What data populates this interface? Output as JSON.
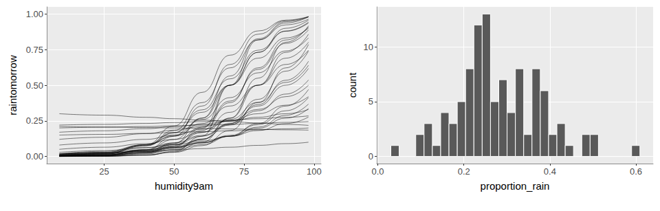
{
  "chart_data": [
    {
      "type": "line",
      "x_label": "humidity9am",
      "y_label": "raintomorrow",
      "color": "#000000",
      "grid": true,
      "xlim": [
        4.5,
        102.5
      ],
      "xticks": [
        25,
        50,
        75,
        100
      ],
      "ylim": [
        -0.05,
        1.05
      ],
      "yticks": [
        {
          "value": 0,
          "label": "0.00"
        },
        {
          "value": 0.25,
          "label": "0.25"
        },
        {
          "value": 0.5,
          "label": "0.50"
        },
        {
          "value": 0.75,
          "label": "0.75"
        },
        {
          "value": 1,
          "label": "1.00"
        }
      ],
      "x": [
        9,
        25,
        40,
        50,
        60,
        70,
        80,
        90,
        98
      ],
      "series": [
        {
          "values": [
            0.002,
            0.007,
            0.029,
            0.076,
            0.182,
            0.378,
            0.622,
            0.818,
            0.909
          ]
        },
        {
          "values": [
            0.003,
            0.011,
            0.047,
            0.119,
            0.269,
            0.5,
            0.731,
            0.881,
            0.943
          ]
        },
        {
          "values": [
            0.005,
            0.018,
            0.076,
            0.182,
            0.378,
            0.622,
            0.818,
            0.924,
            0.964
          ]
        },
        {
          "values": [
            0.001,
            0.004,
            0.018,
            0.047,
            0.119,
            0.269,
            0.5,
            0.731,
            0.858
          ]
        },
        {
          "values": [
            0.001,
            0.004,
            0.022,
            0.069,
            0.198,
            0.5,
            0.731,
            0.9,
            0.957
          ]
        },
        {
          "values": [
            0,
            0.002,
            0.01,
            0.032,
            0.1,
            0.269,
            0.55,
            0.802,
            0.917
          ]
        },
        {
          "values": [
            0.01,
            0.027,
            0.083,
            0.168,
            0.31,
            0.5,
            0.69,
            0.832,
            0.9
          ]
        },
        {
          "values": [
            0.005,
            0.012,
            0.039,
            0.083,
            0.168,
            0.31,
            0.5,
            0.69,
            0.802
          ]
        },
        {
          "values": [
            0.003,
            0.008,
            0.027,
            0.057,
            0.119,
            0.231,
            0.401,
            0.599,
            0.739
          ]
        },
        {
          "values": [
            0.01,
            0.02,
            0.047,
            0.083,
            0.142,
            0.231,
            0.354,
            0.5,
            0.618
          ]
        },
        {
          "values": [
            0.018,
            0.036,
            0.083,
            0.142,
            0.231,
            0.354,
            0.5,
            0.646,
            0.746
          ]
        },
        {
          "values": [
            0.016,
            0.029,
            0.06,
            0.095,
            0.148,
            0.223,
            0.321,
            0.438,
            0.537
          ]
        },
        {
          "values": [
            0.01,
            0.018,
            0.037,
            0.06,
            0.095,
            0.148,
            0.223,
            0.321,
            0.413
          ]
        },
        {
          "values": [
            0.017,
            0.027,
            0.047,
            0.069,
            0.1,
            0.142,
            0.198,
            0.269,
            0.336
          ]
        },
        {
          "values": [
            0.029,
            0.041,
            0.063,
            0.083,
            0.109,
            0.142,
            0.182,
            0.231,
            0.277
          ]
        },
        {
          "values": [
            0.2,
            0.205,
            0.21,
            0.215,
            0.22,
            0.225,
            0.232,
            0.24,
            0.245
          ]
        },
        {
          "values": [
            0.3,
            0.29,
            0.275,
            0.265,
            0.255,
            0.245,
            0.235,
            0.225,
            0.218
          ]
        },
        {
          "values": [
            0.22,
            0.225,
            0.232,
            0.238,
            0.245,
            0.255,
            0.265,
            0.275,
            0.285
          ]
        },
        {
          "values": [
            0.17,
            0.18,
            0.195,
            0.21,
            0.225,
            0.25,
            0.275,
            0.3,
            0.33
          ]
        },
        {
          "values": [
            0.12,
            0.135,
            0.16,
            0.185,
            0.21,
            0.25,
            0.3,
            0.36,
            0.42
          ]
        },
        {
          "values": [
            0.08,
            0.095,
            0.12,
            0.15,
            0.19,
            0.25,
            0.33,
            0.42,
            0.5
          ]
        },
        {
          "values": [
            0.05,
            0.065,
            0.09,
            0.12,
            0.17,
            0.26,
            0.38,
            0.52,
            0.64
          ]
        },
        {
          "values": [
            0.02,
            0.025,
            0.035,
            0.045,
            0.055,
            0.065,
            0.078,
            0.09,
            0.1
          ]
        },
        {
          "values": [
            0.15,
            0.155,
            0.162,
            0.168,
            0.174,
            0.18,
            0.187,
            0.194,
            0.2
          ]
        },
        {
          "values": [
            0.21,
            0.207,
            0.203,
            0.2,
            0.197,
            0.193,
            0.19,
            0.187,
            0.185
          ]
        },
        {
          "values": [
            0.001,
            0.004,
            0.027,
            0.091,
            0.269,
            0.565,
            0.826,
            0.946,
            0.98
          ]
        },
        {
          "values": [
            0.005,
            0.016,
            0.083,
            0.214,
            0.45,
            0.711,
            0.881,
            0.957,
            0.982
          ]
        },
        {
          "values": [
            0.004,
            0.011,
            0.041,
            0.095,
            0.206,
            0.389,
            0.611,
            0.794,
            0.888
          ]
        },
        {
          "values": [
            0.013,
            0.029,
            0.079,
            0.148,
            0.259,
            0.413,
            0.587,
            0.741,
            0.833
          ]
        },
        {
          "values": [
            0.005,
            0.012,
            0.034,
            0.065,
            0.123,
            0.221,
            0.364,
            0.535,
            0.668
          ]
        },
        {
          "values": [
            0.001,
            0.002,
            0.011,
            0.029,
            0.076,
            0.182,
            0.378,
            0.622,
            0.786
          ]
        },
        {
          "values": [
            0,
            0.001,
            0.008,
            0.036,
            0.142,
            0.5,
            0.818,
            0.937,
            0.98
          ]
        },
        {
          "values": [
            0.002,
            0.008,
            0.047,
            0.142,
            0.354,
            0.646,
            0.858,
            0.953,
            0.981
          ]
        },
        {
          "values": [
            0.007,
            0.02,
            0.074,
            0.165,
            0.327,
            0.545,
            0.746,
            0.879,
            0.937
          ]
        },
        {
          "values": [
            0.005,
            0.011,
            0.027,
            0.047,
            0.083,
            0.142,
            0.231,
            0.354,
            0.47
          ]
        },
        {
          "values": [
            0.012,
            0.021,
            0.041,
            0.063,
            0.095,
            0.142,
            0.206,
            0.289,
            0.368
          ]
        }
      ]
    },
    {
      "type": "histogram",
      "x_label": "proportion_rain",
      "y_label": "count",
      "color": "#595959",
      "grid": true,
      "xlim": [
        -0.0025,
        0.64
      ],
      "xticks": [
        {
          "value": 0,
          "label": "0.0"
        },
        {
          "value": 0.2,
          "label": "0.2"
        },
        {
          "value": 0.4,
          "label": "0.4"
        },
        {
          "value": 0.6,
          "label": "0.6"
        }
      ],
      "ylim": [
        -0.65,
        13.65
      ],
      "yticks": [
        0,
        5,
        10
      ],
      "bins": [
        0.0303,
        0.0496,
        0.0689,
        0.0882,
        0.1075,
        0.1268,
        0.1461,
        0.1654,
        0.1847,
        0.204,
        0.2233,
        0.2426,
        0.2619,
        0.2812,
        0.3005,
        0.3198,
        0.3391,
        0.3584,
        0.3777,
        0.397,
        0.4163,
        0.4356,
        0.4549,
        0.4742,
        0.4935,
        0.5128,
        0.5321,
        0.5514,
        0.5707,
        0.59,
        0.6093
      ],
      "values": [
        1,
        0,
        0,
        2,
        3,
        1,
        4,
        3,
        5,
        8,
        12,
        13,
        5,
        7,
        4,
        8,
        2,
        8,
        6,
        2,
        3,
        1,
        0,
        2,
        2,
        0,
        0,
        0,
        0,
        1
      ]
    }
  ]
}
